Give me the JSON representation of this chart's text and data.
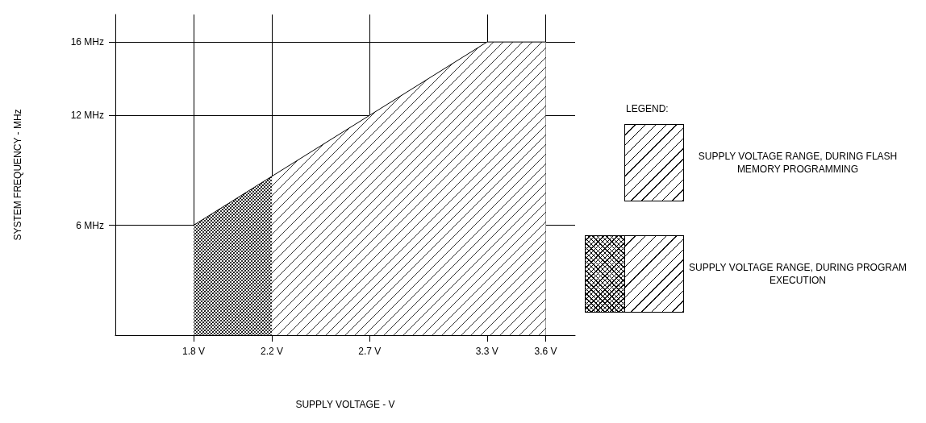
{
  "chart_data": {
    "type": "area",
    "xlabel": "SUPPLY VOLTAGE - V",
    "ylabel": "SYSTEM FREQUENCY - MHz",
    "legend_title": "LEGEND:",
    "series": [
      {
        "name": "SUPPLY VOLTAGE RANGE, DURING FLASH MEMORY PROGRAMMING",
        "color": "#000000",
        "x": [
          2.2,
          2.7,
          3.3,
          3.6
        ],
        "values": [
          8.67,
          12,
          16,
          16
        ]
      },
      {
        "name": "SUPPLY VOLTAGE RANGE, DURING PROGRAM EXECUTION",
        "color": "#000000",
        "x": [
          1.8,
          2.2
        ],
        "values": [
          6,
          8.67
        ]
      }
    ],
    "xlim": [
      1.4,
      3.75
    ],
    "ylim": [
      0,
      17.5
    ],
    "xticks": [
      {
        "value": 1.8,
        "label": "1.8 V"
      },
      {
        "value": 2.2,
        "label": "2.2 V"
      },
      {
        "value": 2.7,
        "label": "2.7 V"
      },
      {
        "value": 3.3,
        "label": "3.3 V"
      },
      {
        "value": 3.6,
        "label": "3.6 V"
      }
    ],
    "yticks": [
      {
        "value": 6,
        "label": "6 MHz"
      },
      {
        "value": 12,
        "label": "12 MHz"
      },
      {
        "value": 16,
        "label": "16 MHz"
      }
    ],
    "grid": true,
    "legend": "right",
    "marker": "none",
    "line_style": "solid"
  }
}
